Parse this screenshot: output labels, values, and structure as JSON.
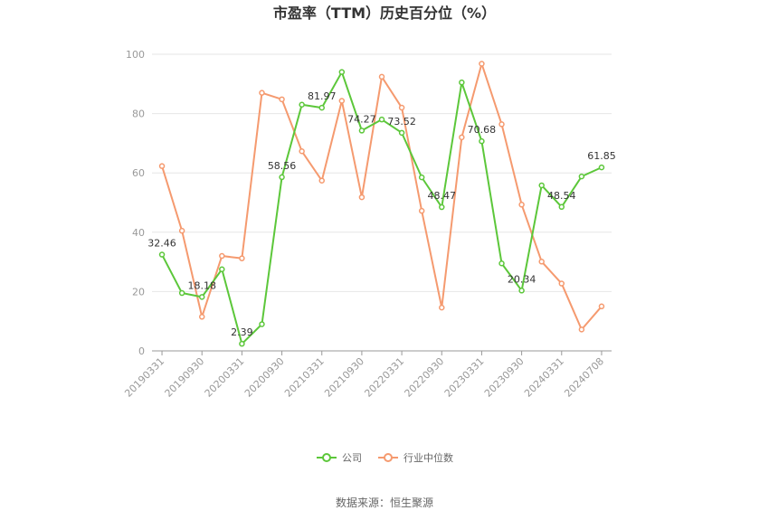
{
  "chart_data": {
    "type": "line",
    "title": "市盈率（TTM）历史百分位（%）",
    "xlabel": "",
    "ylabel": "",
    "ylim": [
      0,
      100
    ],
    "yticks": [
      "0",
      "20",
      "40",
      "60",
      "80",
      "100"
    ],
    "tick_categories": [
      "20190331",
      "20190930",
      "20200331",
      "20200930",
      "20210331",
      "20210930",
      "20220331",
      "20220930",
      "20230331",
      "20230930",
      "20240331",
      "20240708"
    ],
    "num_points": 23,
    "grid": true,
    "legend_position": "bottom",
    "series": [
      {
        "name": "公司",
        "color": "#5cc73a",
        "values": [
          32.46,
          19.5,
          18.18,
          27.5,
          2.39,
          9.0,
          58.56,
          83.0,
          81.97,
          94.0,
          74.27,
          78.0,
          73.52,
          58.5,
          48.47,
          90.5,
          70.68,
          29.5,
          20.34,
          55.8,
          48.54,
          58.8,
          61.85
        ],
        "labels": [
          "32.46",
          "",
          "18.18",
          "",
          "2.39",
          "",
          "58.56",
          "",
          "81.97",
          "",
          "74.27",
          "",
          "73.52",
          "",
          "48.47",
          "",
          "70.68",
          "",
          "20.34",
          "",
          "48.54",
          "",
          "61.85"
        ]
      },
      {
        "name": "行业中位数",
        "color": "#f59a6f",
        "values": [
          62.3,
          40.5,
          11.5,
          32.0,
          31.2,
          87.0,
          84.8,
          67.3,
          57.4,
          84.3,
          51.8,
          92.4,
          82.0,
          47.2,
          14.6,
          72.0,
          96.8,
          76.4,
          49.3,
          30.1,
          22.7,
          7.2,
          15.0
        ],
        "labels": []
      }
    ],
    "source": "数据来源：恒生聚源"
  }
}
